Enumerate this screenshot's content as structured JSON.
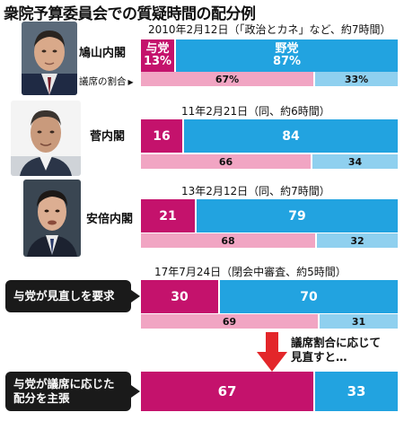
{
  "title": "衆院予算委員会での質疑時間の配分例",
  "seat_label": "議席の割合",
  "note": "議席割合に応じて\n見直すと…",
  "colors": {
    "ruling": "#c4126c",
    "opposition": "#22a3e0",
    "ruling_seat": "#f1a5c3",
    "opposition_seat": "#8fd0ef",
    "arrow": "#e3262a",
    "callout": "#1a1a1a"
  },
  "chart_data": {
    "type": "bar",
    "orientation": "horizontal",
    "stacked": true,
    "title": "衆院予算委員会での質疑時間の配分例",
    "unit": "%",
    "legend": [
      "与党",
      "野党"
    ],
    "rows": [
      {
        "period": "2010年2月12日（「政治とカネ」など、約7時間）",
        "cabinet": "鳩山内閣",
        "ruling_label": "与党",
        "opposition_label": "野党",
        "ruling": 13,
        "opposition": 87,
        "ruling_text": "13%",
        "opposition_text": "87%",
        "seat_ruling": 67,
        "seat_opposition": 33,
        "seat_ruling_text": "67%",
        "seat_opposition_text": "33%"
      },
      {
        "period": "11年2月21日（同、約6時間）",
        "cabinet": "菅内閣",
        "ruling": 16,
        "opposition": 84,
        "ruling_text": "16",
        "opposition_text": "84",
        "seat_ruling": 66,
        "seat_opposition": 34,
        "seat_ruling_text": "66",
        "seat_opposition_text": "34"
      },
      {
        "period": "13年2月12日（同、約7時間）",
        "cabinet": "安倍内閣",
        "ruling": 21,
        "opposition": 79,
        "ruling_text": "21",
        "opposition_text": "79",
        "seat_ruling": 68,
        "seat_opposition": 32,
        "seat_ruling_text": "68",
        "seat_opposition_text": "32"
      },
      {
        "period": "17年7月24日（閉会中審査、約5時間）",
        "callout": "与党が見直しを要求",
        "ruling": 30,
        "opposition": 70,
        "ruling_text": "30",
        "opposition_text": "70",
        "seat_ruling": 69,
        "seat_opposition": 31,
        "seat_ruling_text": "69",
        "seat_opposition_text": "31"
      },
      {
        "callout": "与党が議席に応じた\n配分を主張",
        "ruling": 67,
        "opposition": 33,
        "ruling_text": "67",
        "opposition_text": "33"
      }
    ]
  }
}
